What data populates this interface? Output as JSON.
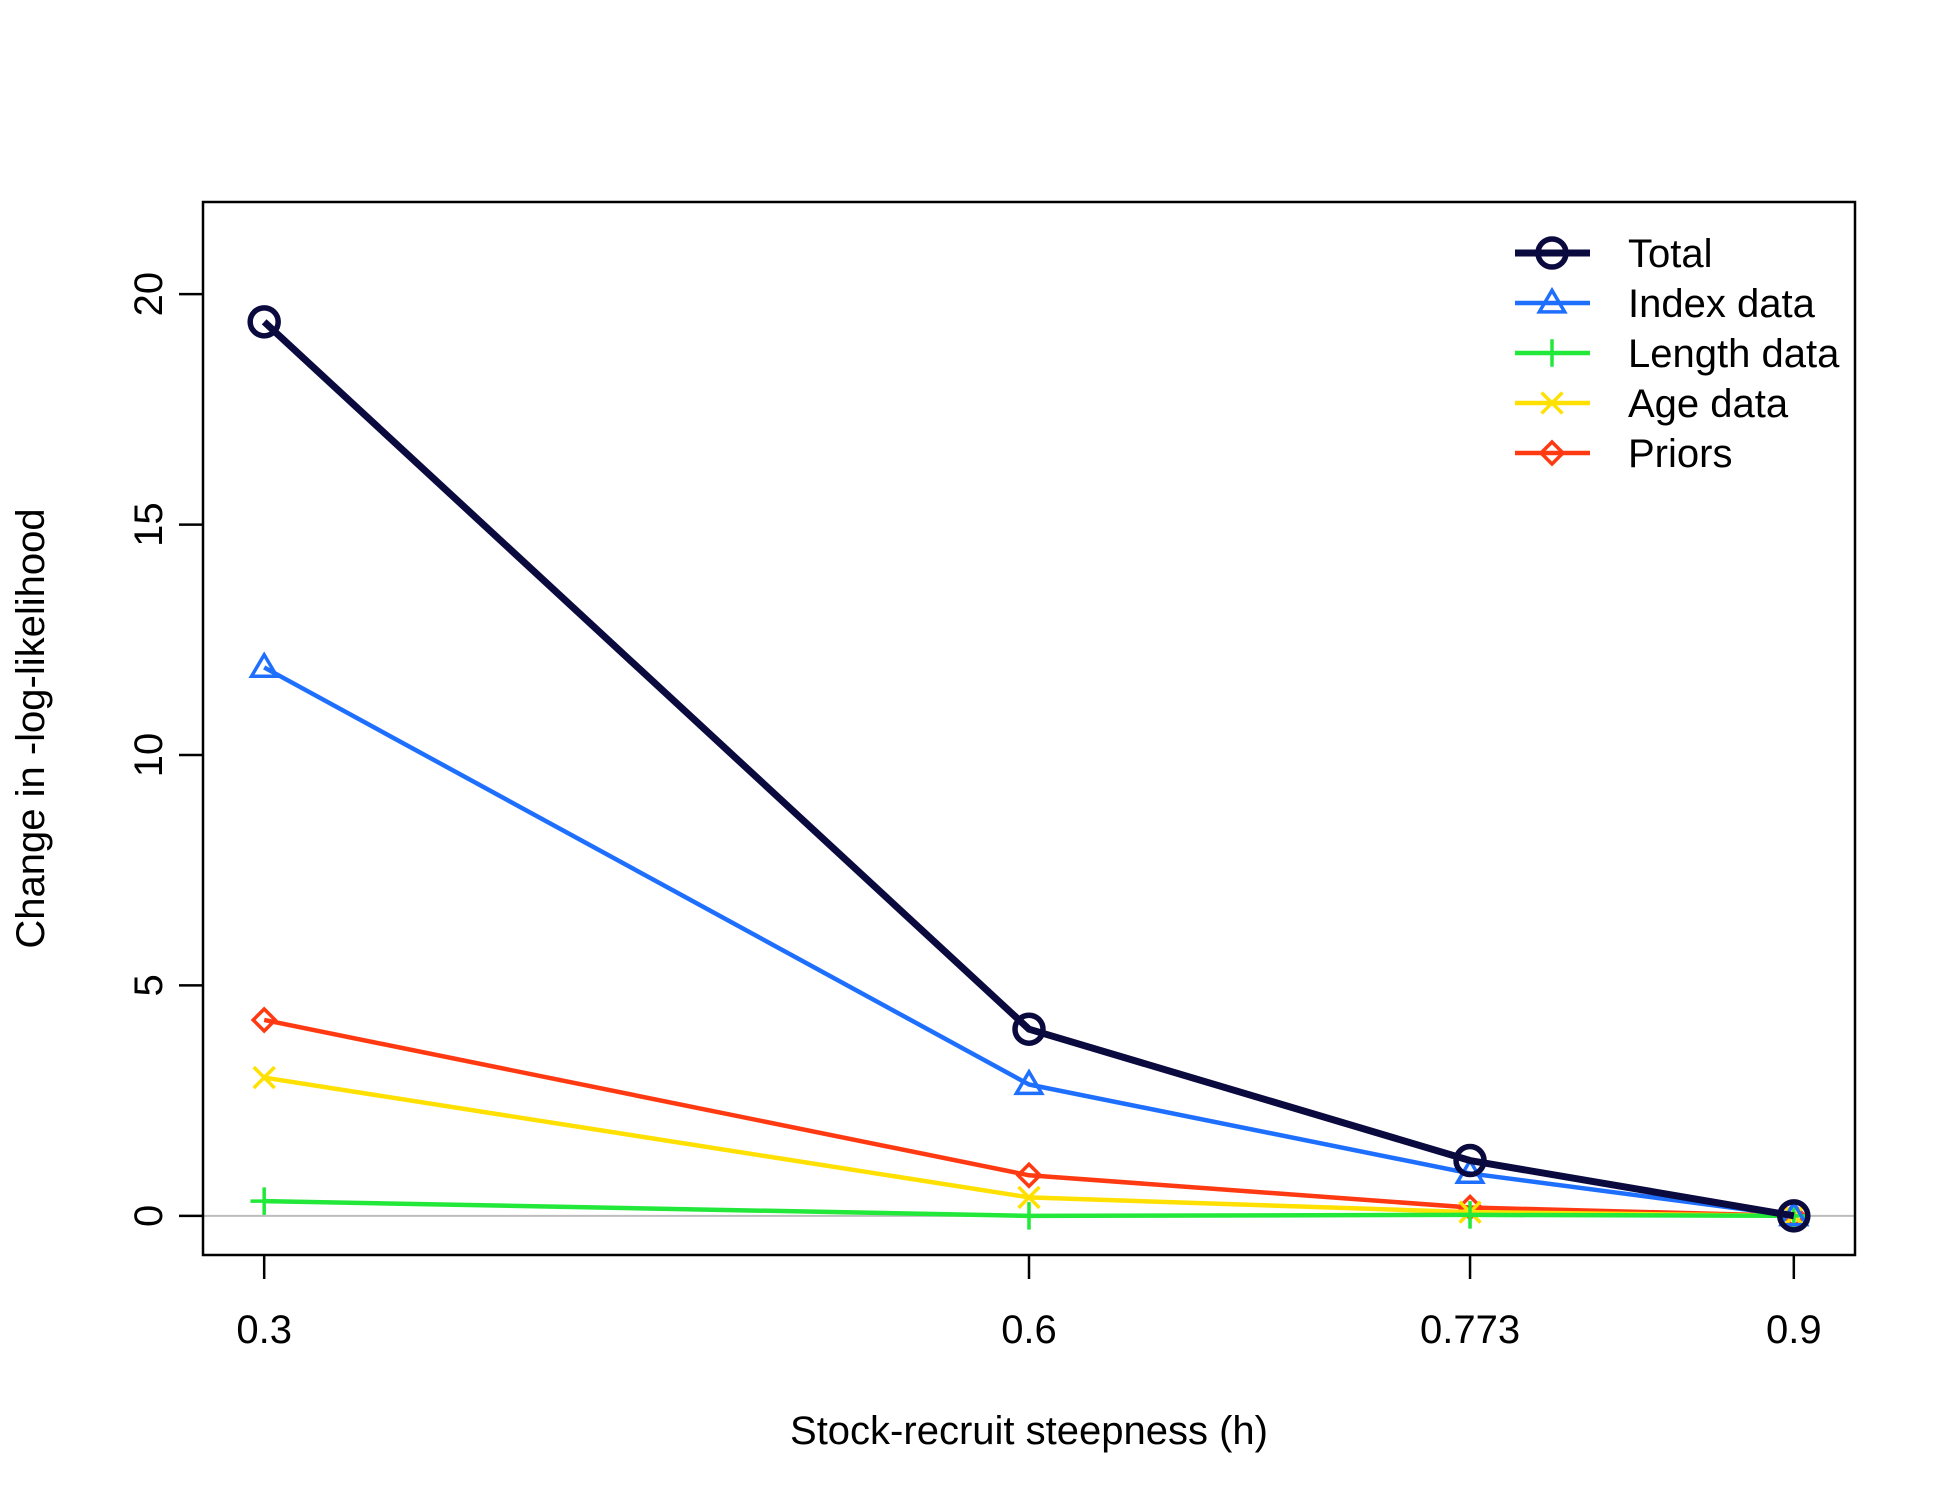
{
  "chart_data": {
    "type": "line",
    "title": "",
    "xlabel": "Stock-recruit steepness (h)",
    "ylabel": "Change in -log-likelihood",
    "x": [
      0.3,
      0.6,
      0.773,
      0.9
    ],
    "x_tick_labels": [
      "0.3",
      "0.6",
      "0.773",
      "0.9"
    ],
    "xlim": [
      0.276,
      0.924
    ],
    "ylim": [
      -0.85,
      22
    ],
    "y_ticks": [
      0,
      5,
      10,
      15,
      20
    ],
    "y_tick_labels": [
      "0",
      "5",
      "10",
      "15",
      "20"
    ],
    "reference_line_y": 0,
    "grid": false,
    "legend_position": "top-right",
    "series": [
      {
        "name": "Total",
        "color": "#0b0a3f",
        "marker": "circle",
        "values": [
          19.4,
          4.05,
          1.2,
          0.0
        ]
      },
      {
        "name": "Index data",
        "color": "#1f6fff",
        "marker": "triangle",
        "values": [
          11.9,
          2.85,
          0.92,
          0.0
        ]
      },
      {
        "name": "Length data",
        "color": "#22e83a",
        "marker": "plus",
        "values": [
          0.32,
          0.0,
          0.02,
          0.0
        ]
      },
      {
        "name": "Age data",
        "color": "#ffe000",
        "marker": "cross",
        "values": [
          3.0,
          0.4,
          0.08,
          0.0
        ]
      },
      {
        "name": "Priors",
        "color": "#ff3a12",
        "marker": "diamond",
        "values": [
          4.25,
          0.88,
          0.18,
          0.0
        ]
      }
    ]
  }
}
